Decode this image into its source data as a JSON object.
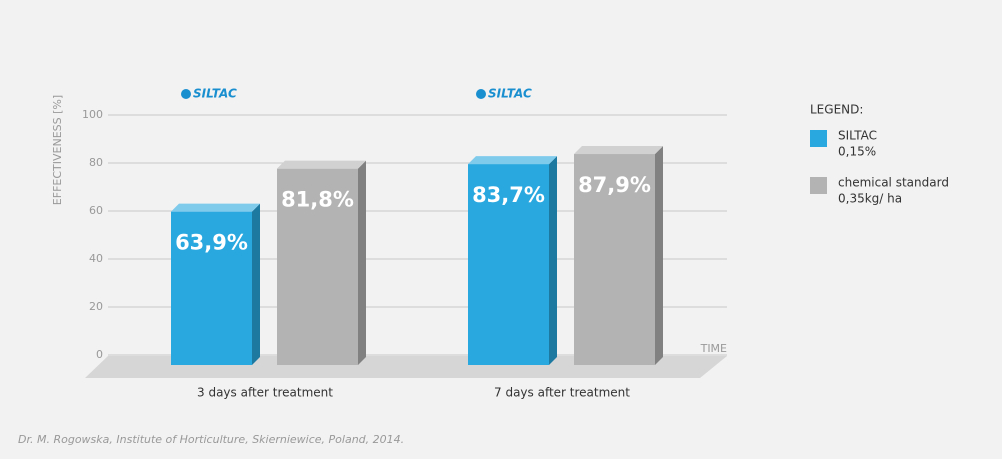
{
  "chart_data": {
    "type": "bar3d",
    "y_axis_label": "EFFECTIVENESS [%]",
    "x_axis_label": "TIME",
    "logo": "SILTAC",
    "categories": [
      "3 days after treatment",
      "7 days after treatment"
    ],
    "series": [
      {
        "name": "SILTAC",
        "detail": "0,15%",
        "color": "#29a8e0",
        "values": [
          63.9,
          83.7
        ],
        "value_labels": [
          "63,9%",
          "83,7%"
        ]
      },
      {
        "name": "chemical standard",
        "detail": "0,35kg/ ha",
        "color": "#b3b3b3",
        "values": [
          81.8,
          87.9
        ],
        "value_labels": [
          "81,8%",
          "87,9%"
        ]
      }
    ],
    "ylim": [
      0,
      100
    ],
    "yticks": [
      0,
      20,
      40,
      60,
      80,
      100
    ],
    "grid": true,
    "legend_title": "LEGEND:",
    "legend_position": "right",
    "source": "Dr. M. Rogowska, Institute of Horticulture, Skierniewice, Poland, 2014."
  }
}
